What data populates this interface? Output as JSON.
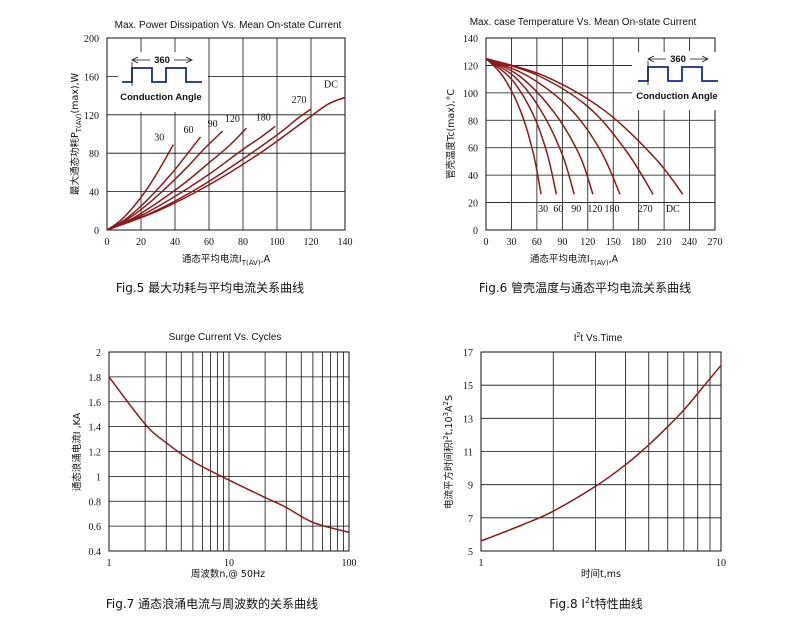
{
  "chart_data": [
    {
      "id": "fig5",
      "type": "line",
      "title": "Max. Power Dissipation Vs. Mean On-state Current",
      "caption": "Fig.5 最大功耗与平均电流关系曲线",
      "xlabel_main": "通态平均电流I",
      "xlabel_sub": "T(AV)",
      "xlabel_tail": ",A",
      "ylabel_main": "最大通态功耗P",
      "ylabel_sub": "T(AV)",
      "ylabel_tail": "(max),W",
      "xlim": [
        0,
        140
      ],
      "ylim": [
        0,
        200
      ],
      "xticks": [
        0,
        20,
        40,
        60,
        80,
        100,
        120,
        140
      ],
      "yticks": [
        0,
        40,
        80,
        120,
        160,
        200
      ],
      "inset_label": "360",
      "inset_caption": "Conduction Angle",
      "series": [
        {
          "name": "30",
          "x": [
            0,
            8,
            16,
            24,
            32,
            39
          ],
          "y": [
            0,
            10,
            25,
            44,
            67,
            89
          ]
        },
        {
          "name": "60",
          "x": [
            0,
            10,
            20,
            30,
            40,
            48,
            55
          ],
          "y": [
            0,
            10,
            25,
            43,
            63,
            81,
            97
          ]
        },
        {
          "name": "90",
          "x": [
            0,
            12,
            24,
            36,
            48,
            58,
            68
          ],
          "y": [
            0,
            11,
            27,
            46,
            67,
            86,
            103
          ]
        },
        {
          "name": "120",
          "x": [
            0,
            15,
            30,
            45,
            60,
            72,
            82
          ],
          "y": [
            0,
            12,
            29,
            48,
            70,
            88,
            106
          ]
        },
        {
          "name": "180",
          "x": [
            0,
            20,
            40,
            60,
            80,
            90,
            99
          ],
          "y": [
            0,
            15,
            35,
            58,
            84,
            96,
            108
          ]
        },
        {
          "name": "270",
          "x": [
            0,
            25,
            50,
            75,
            100,
            112,
            120
          ],
          "y": [
            0,
            17,
            40,
            68,
            99,
            116,
            126
          ]
        },
        {
          "name": "DC",
          "x": [
            0,
            30,
            60,
            90,
            115,
            130,
            140
          ],
          "y": [
            0,
            20,
            47,
            80,
            112,
            131,
            138
          ]
        }
      ]
    },
    {
      "id": "fig6",
      "type": "line",
      "title": "Max. case Temperature Vs. Mean On-state Current",
      "caption": "Fig.6 管壳温度与通态平均电流关系曲线",
      "xlabel_main": "通态平均电流I",
      "xlabel_sub": "T(AV)",
      "xlabel_tail": ",A",
      "ylabel_main": "管壳温度Tc(max),",
      "ylabel_tail": "°C",
      "xlim": [
        0,
        270
      ],
      "ylim": [
        0,
        140
      ],
      "xticks": [
        0,
        30,
        60,
        90,
        120,
        150,
        180,
        210,
        240,
        270
      ],
      "yticks": [
        0,
        20,
        40,
        60,
        80,
        100,
        120,
        140
      ],
      "inset_label": "360",
      "inset_caption": "Conduction Angle",
      "series": [
        {
          "name": "30",
          "x": [
            0,
            20,
            40,
            55,
            65
          ],
          "y": [
            125,
            112,
            88,
            58,
            26
          ]
        },
        {
          "name": "60",
          "x": [
            0,
            30,
            55,
            72,
            83
          ],
          "y": [
            125,
            110,
            85,
            56,
            26
          ]
        },
        {
          "name": "90",
          "x": [
            0,
            35,
            65,
            90,
            104
          ],
          "y": [
            125,
            111,
            87,
            55,
            26
          ]
        },
        {
          "name": "120",
          "x": [
            0,
            40,
            80,
            110,
            126
          ],
          "y": [
            125,
            112,
            86,
            55,
            26
          ]
        },
        {
          "name": "180",
          "x": [
            0,
            50,
            100,
            135,
            158
          ],
          "y": [
            125,
            112,
            88,
            58,
            26
          ]
        },
        {
          "name": "270",
          "x": [
            0,
            60,
            120,
            165,
            197
          ],
          "y": [
            125,
            113,
            90,
            58,
            26
          ]
        },
        {
          "name": "DC",
          "x": [
            0,
            70,
            140,
            200,
            232
          ],
          "y": [
            125,
            112,
            87,
            52,
            26
          ]
        }
      ]
    },
    {
      "id": "fig7",
      "type": "line",
      "title": "Surge Current Vs. Cycles",
      "caption": "Fig.7 通态浪涌电流与周波数的关系曲线",
      "xlabel": "周波数n,@ 50Hz",
      "ylabel_main": "通态浪涌电流I",
      "ylabel_tail": " ,KA",
      "xscale": "log",
      "xlim": [
        1,
        100
      ],
      "ylim": [
        0.4,
        2
      ],
      "xticks": [
        1,
        10,
        100
      ],
      "yticks": [
        0.4,
        0.6,
        0.8,
        1,
        1.2,
        1.4,
        1.6,
        1.8,
        2
      ],
      "series": [
        {
          "x": [
            1,
            2,
            3,
            5,
            10,
            20,
            30,
            50,
            100
          ],
          "y": [
            1.8,
            1.42,
            1.27,
            1.12,
            0.97,
            0.83,
            0.75,
            0.63,
            0.55
          ]
        }
      ]
    },
    {
      "id": "fig8",
      "type": "line",
      "title_main": "I",
      "title_sup": "2",
      "title_tail": "t  Vs.Time",
      "caption_pre": "Fig.8 I",
      "caption_sup": "2",
      "caption_tail": "t特性曲线",
      "xlabel": "时间t,ms",
      "ylabel_main": "电流平方时间积I",
      "ylabel_sup1": "2",
      "ylabel_mid": "t,10",
      "ylabel_sup2": "3",
      "ylabel_mid2": "A",
      "ylabel_sup3": "2",
      "ylabel_tail": "S",
      "xscale": "log",
      "xlim": [
        1,
        10
      ],
      "ylim": [
        5,
        17
      ],
      "xticks": [
        1,
        10
      ],
      "yticks": [
        5,
        7,
        9,
        11,
        13,
        15,
        17
      ],
      "series": [
        {
          "x": [
            1,
            1.5,
            2,
            3,
            4,
            5,
            6,
            7,
            8,
            10
          ],
          "y": [
            5.6,
            6.6,
            7.4,
            8.9,
            10.2,
            11.4,
            12.5,
            13.5,
            14.5,
            16.2
          ]
        }
      ]
    }
  ]
}
